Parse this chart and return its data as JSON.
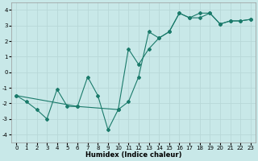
{
  "xlabel": "Humidex (Indice chaleur)",
  "bg_color": "#c8e8e8",
  "line_color": "#1a7a6a",
  "grid_color": "#b8d8d8",
  "xlim": [
    -0.5,
    23.5
  ],
  "ylim": [
    -4.5,
    4.5
  ],
  "xticks": [
    0,
    1,
    2,
    3,
    4,
    5,
    6,
    7,
    8,
    9,
    10,
    11,
    12,
    13,
    14,
    15,
    16,
    17,
    18,
    19,
    20,
    21,
    22,
    23
  ],
  "yticks": [
    -4,
    -3,
    -2,
    -1,
    0,
    1,
    2,
    3,
    4
  ],
  "line1_x": [
    0,
    1,
    2,
    3,
    4,
    5,
    6,
    7,
    8,
    9,
    10,
    11,
    12,
    13,
    14,
    15,
    16,
    17,
    18,
    19,
    20,
    21,
    22,
    23
  ],
  "line1_y": [
    -1.5,
    -1.9,
    -2.4,
    -3.0,
    -1.1,
    -2.2,
    -2.2,
    -0.3,
    -1.5,
    -3.7,
    -2.4,
    -1.9,
    -0.3,
    2.6,
    2.2,
    2.6,
    3.8,
    3.5,
    3.8,
    3.8,
    3.1,
    3.3,
    3.3,
    3.4
  ],
  "line2_x": [
    0,
    6,
    10,
    11,
    12,
    13,
    14,
    15,
    16,
    17,
    18,
    19,
    20,
    21,
    22,
    23
  ],
  "line2_y": [
    -1.5,
    -2.2,
    -2.4,
    1.5,
    0.5,
    1.5,
    2.2,
    2.6,
    3.8,
    3.5,
    3.5,
    3.8,
    3.1,
    3.3,
    3.3,
    3.4
  ],
  "xlabel_fontsize": 6.0,
  "tick_fontsize": 5.0
}
